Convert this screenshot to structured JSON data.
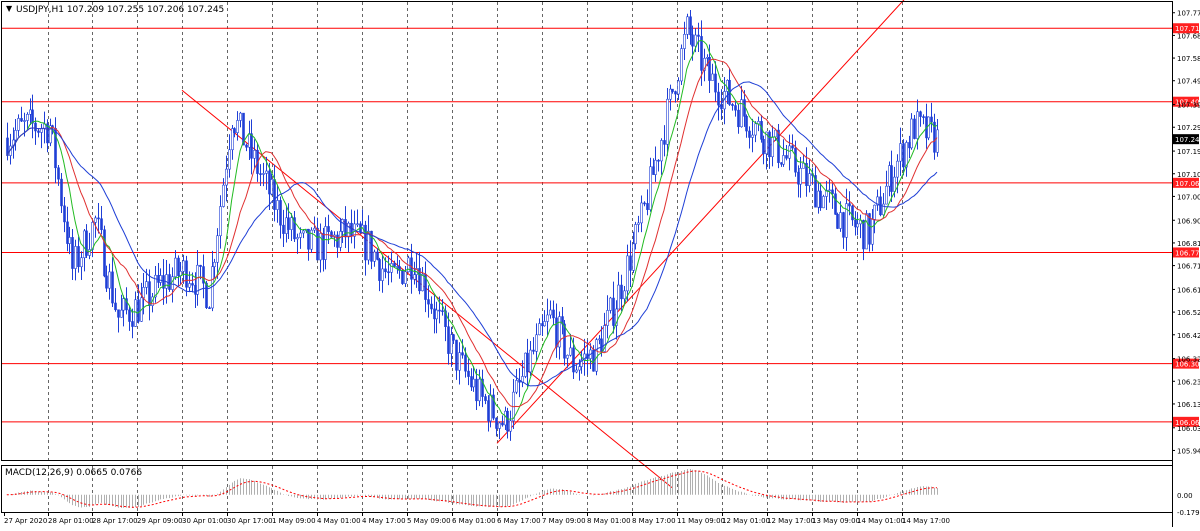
{
  "header": {
    "symbol_info": "USDJPY,H1  107.209 107.255 107.206 107.245"
  },
  "colors": {
    "background": "#ffffff",
    "grid": "#000000",
    "candle": "#1f3fd6",
    "ma_fast": "#22bb22",
    "ma_mid": "#e03030",
    "ma_slow": "#1f3fd6",
    "level_line": "#ff0000",
    "trend_line": "#ff0000",
    "price_label_bg": "#ff2020",
    "current_label_bg": "#000000",
    "macd_hist": "#b0b0b0",
    "macd_signal": "#ff0000"
  },
  "chart_data": [
    {
      "type": "candlestick",
      "title": "USDJPY,H1",
      "ohlc_header": {
        "open": 107.209,
        "high": 107.255,
        "low": 107.206,
        "close": 107.245
      },
      "current_price": 107.245,
      "ylim": [
        105.9,
        107.82
      ],
      "y_ticks": [
        107.775,
        107.68,
        107.585,
        107.49,
        107.39,
        107.295,
        107.195,
        107.1,
        107.005,
        106.905,
        106.81,
        106.715,
        106.615,
        106.52,
        106.425,
        106.325,
        106.23,
        106.135,
        106.035,
        105.94
      ],
      "x_ticks": [
        "27 Apr 2020",
        "28 Apr 01:00",
        "28 Apr 17:00",
        "29 Apr 09:00",
        "30 Apr 01:00",
        "30 Apr 17:00",
        "1 May 09:00",
        "4 May 01:00",
        "4 May 17:00",
        "5 May 09:00",
        "6 May 01:00",
        "6 May 17:00",
        "7 May 09:00",
        "8 May 01:00",
        "8 May 17:00",
        "11 May 09:00",
        "12 May 01:00",
        "12 May 17:00",
        "13 May 09:00",
        "14 May 01:00",
        "14 May 17:00"
      ],
      "grid": true,
      "horizontal_levels": [
        107.71,
        107.402,
        107.062,
        106.77,
        106.304,
        106.06
      ],
      "trend_lines": [
        {
          "from": [
            "30 Apr 01:00",
            107.45
          ],
          "to": [
            "8 May 17:00",
            105.92
          ]
        },
        {
          "from": [
            "6 May 17:00",
            105.97
          ],
          "to": [
            "14 May 17:00",
            107.82
          ]
        }
      ],
      "close_path": [
        {
          "t": "27 Apr 2020",
          "close": 107.25
        },
        {
          "t": "27 Apr 09:00",
          "close": 107.3
        },
        {
          "t": "28 Apr 01:00",
          "close": 107.3
        },
        {
          "t": "28 Apr 09:00",
          "close": 106.7
        },
        {
          "t": "28 Apr 17:00",
          "close": 106.9
        },
        {
          "t": "29 Apr 01:00",
          "close": 106.5
        },
        {
          "t": "29 Apr 09:00",
          "close": 106.55
        },
        {
          "t": "29 Apr 17:00",
          "close": 106.65
        },
        {
          "t": "30 Apr 01:00",
          "close": 106.7
        },
        {
          "t": "30 Apr 09:00",
          "close": 106.6
        },
        {
          "t": "30 Apr 17:00",
          "close": 107.35
        },
        {
          "t": "1 May 01:00",
          "close": 107.15
        },
        {
          "t": "1 May 09:00",
          "close": 106.95
        },
        {
          "t": "1 May 17:00",
          "close": 106.8
        },
        {
          "t": "4 May 01:00",
          "close": 106.8
        },
        {
          "t": "4 May 09:00",
          "close": 106.85
        },
        {
          "t": "4 May 17:00",
          "close": 106.8
        },
        {
          "t": "5 May 01:00",
          "close": 106.65
        },
        {
          "t": "5 May 09:00",
          "close": 106.75
        },
        {
          "t": "5 May 17:00",
          "close": 106.5
        },
        {
          "t": "6 May 01:00",
          "close": 106.3
        },
        {
          "t": "6 May 09:00",
          "close": 106.15
        },
        {
          "t": "6 May 17:00",
          "close": 106.05
        },
        {
          "t": "7 May 01:00",
          "close": 106.3
        },
        {
          "t": "7 May 09:00",
          "close": 106.5
        },
        {
          "t": "7 May 17:00",
          "close": 106.3
        },
        {
          "t": "8 May 01:00",
          "close": 106.35
        },
        {
          "t": "8 May 09:00",
          "close": 106.6
        },
        {
          "t": "8 May 17:00",
          "close": 106.9
        },
        {
          "t": "11 May 01:00",
          "close": 107.3
        },
        {
          "t": "11 May 09:00",
          "close": 107.7
        },
        {
          "t": "11 May 17:00",
          "close": 107.5
        },
        {
          "t": "12 May 01:00",
          "close": 107.4
        },
        {
          "t": "12 May 09:00",
          "close": 107.3
        },
        {
          "t": "12 May 17:00",
          "close": 107.2
        },
        {
          "t": "13 May 01:00",
          "close": 107.1
        },
        {
          "t": "13 May 09:00",
          "close": 107.0
        },
        {
          "t": "13 May 17:00",
          "close": 106.9
        },
        {
          "t": "14 May 01:00",
          "close": 106.85
        },
        {
          "t": "14 May 09:00",
          "close": 107.1
        },
        {
          "t": "14 May 17:00",
          "close": 107.3
        },
        {
          "t": "15 May 01:00",
          "close": 107.245
        }
      ]
    },
    {
      "type": "bar",
      "title": "MACD(12,26,9) 0.0665 0.0766",
      "macd_values": {
        "main": 0.0665,
        "signal": 0.0766
      },
      "ylim": [
        -0.18,
        0.3
      ],
      "y_ticks": [
        0.0,
        -0.1793
      ]
    }
  ]
}
